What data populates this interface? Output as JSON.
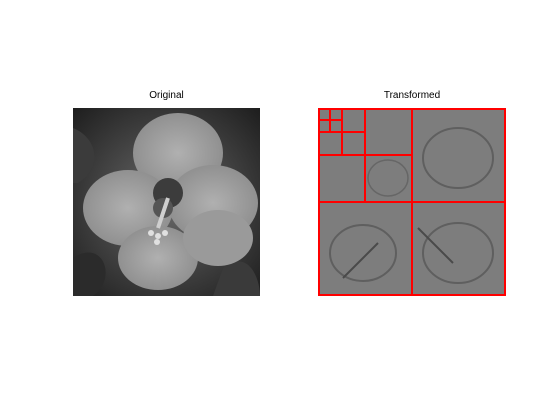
{
  "panels": {
    "left": {
      "title": "Original"
    },
    "right": {
      "title": "Transformed"
    }
  },
  "colors": {
    "background": "#ffffff",
    "grid_line": "#ff0000",
    "mid_gray": "#7d7d7d",
    "dark_gray": "#2f2f2f"
  }
}
